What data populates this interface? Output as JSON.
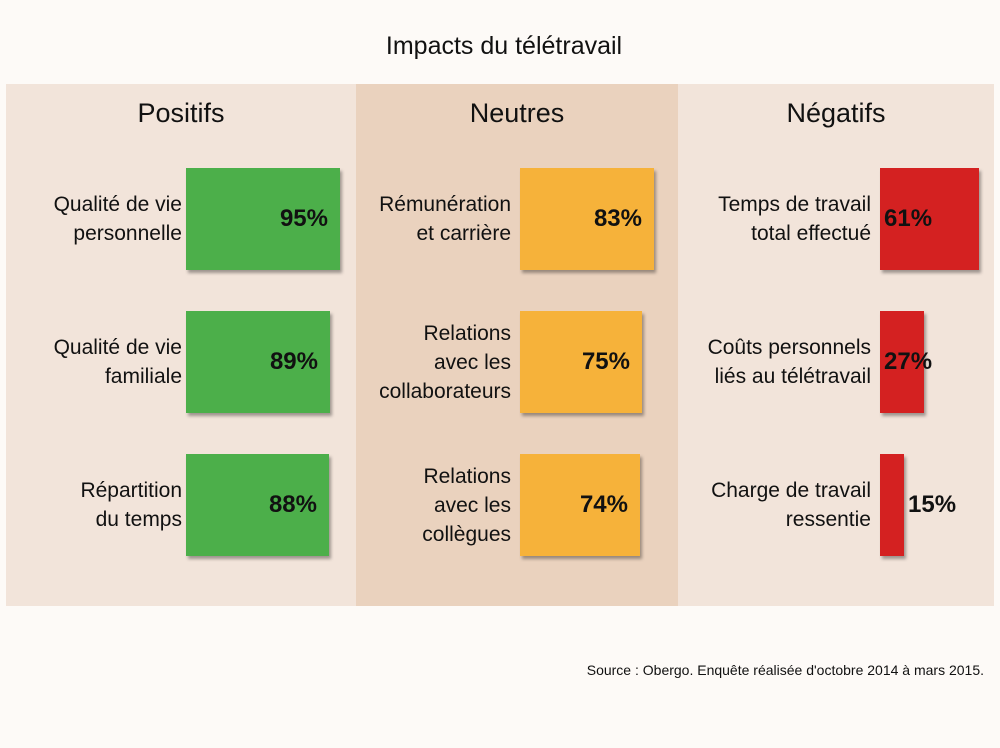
{
  "chart_data": {
    "type": "bar",
    "title": "Impacts du télétravail",
    "columns": [
      {
        "heading": "Positifs",
        "color": "#4caf4a",
        "items": [
          {
            "label": [
              "Qualité de vie",
              "personnelle"
            ],
            "value": 95
          },
          {
            "label": [
              "Qualité de vie",
              "familiale"
            ],
            "value": 89
          },
          {
            "label": [
              "Répartition",
              "du temps"
            ],
            "value": 88
          }
        ]
      },
      {
        "heading": "Neutres",
        "color": "#f6b23a",
        "items": [
          {
            "label": [
              "Rémunération",
              "et carrière"
            ],
            "value": 83
          },
          {
            "label": [
              "Relations",
              "avec les",
              "collaborateurs"
            ],
            "value": 75
          },
          {
            "label": [
              "Relations",
              "avec les",
              "collègues"
            ],
            "value": 74
          }
        ]
      },
      {
        "heading": "Négatifs",
        "color": "#d42121",
        "items": [
          {
            "label": [
              "Temps de travail",
              "total effectué"
            ],
            "value": 61
          },
          {
            "label": [
              "Coûts personnels",
              "liés au télétravail"
            ],
            "value": 27
          },
          {
            "label": [
              "Charge de travail",
              "ressentie"
            ],
            "value": 15
          }
        ]
      }
    ],
    "value_suffix": "%",
    "source": "Source : Obergo. Enquête réalisée d'octobre 2014 à mars 2015."
  }
}
